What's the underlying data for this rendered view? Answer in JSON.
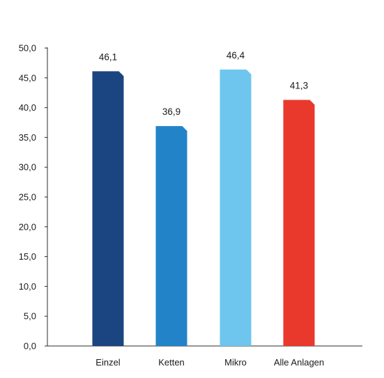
{
  "chart_data": {
    "type": "bar",
    "title": "",
    "xlabel": "",
    "ylabel": "",
    "ylim": [
      0,
      50
    ],
    "yticks": [
      "0,0",
      "5,0",
      "10,0",
      "15,0",
      "20,0",
      "25,0",
      "30,0",
      "35,0",
      "40,0",
      "45,0",
      "50,0"
    ],
    "grid": false,
    "legend": "none",
    "categories": [
      "Einzel",
      "Ketten",
      "Mikro",
      "Alle Anlagen"
    ],
    "values": [
      46.1,
      36.9,
      46.4,
      41.3
    ],
    "value_labels": [
      "46,1",
      "36,9",
      "46,4",
      "41,3"
    ],
    "colors": [
      "#1b4580",
      "#2383c8",
      "#6ec6ee",
      "#e8392c"
    ]
  }
}
